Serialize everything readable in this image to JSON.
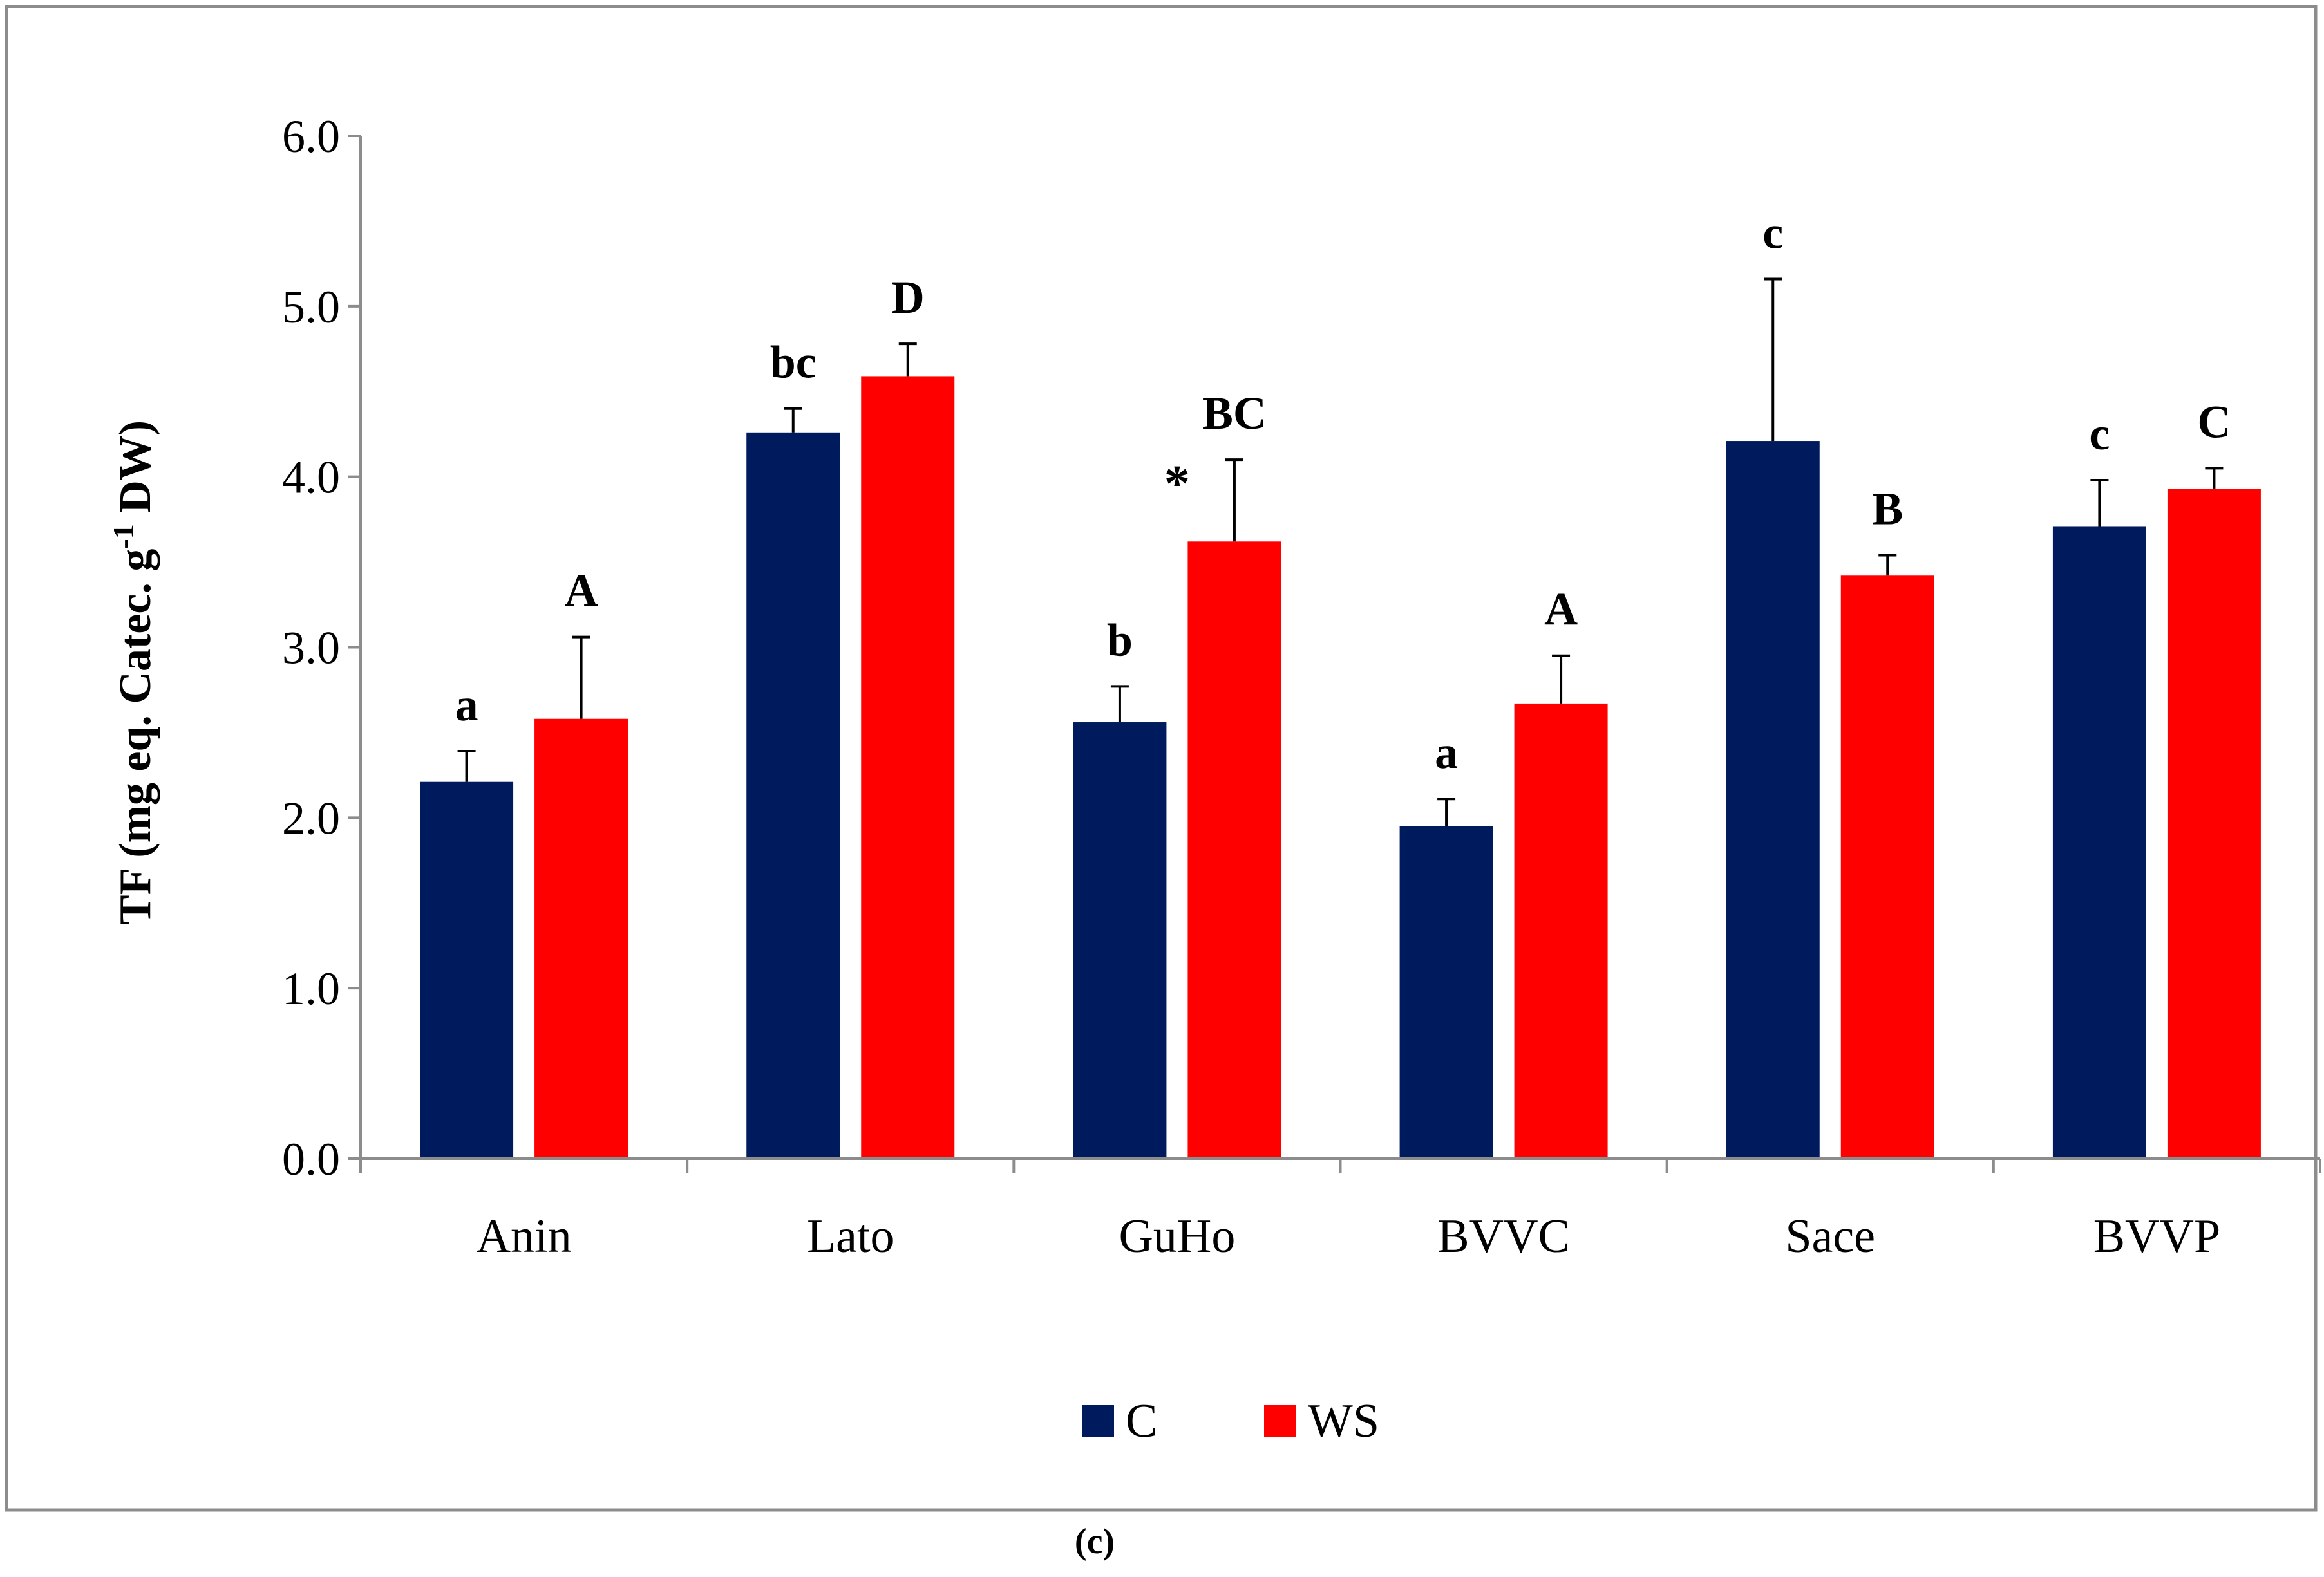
{
  "chart_data": {
    "type": "bar",
    "title": "",
    "xlabel": "",
    "ylabel_main": "TF (mg  eq. Catec. g",
    "ylabel_sup": "-1",
    "ylabel_tail": " DW)",
    "ylim": [
      0,
      6
    ],
    "yticks": [
      "0.0",
      "1.0",
      "2.0",
      "3.0",
      "4.0",
      "5.0",
      "6.0"
    ],
    "categories": [
      "Anin",
      "Lato",
      "GuHo",
      "BVVC",
      "Sace",
      "BVVP"
    ],
    "series": [
      {
        "name": "C",
        "color": "#001a5e",
        "values": [
          2.21,
          4.26,
          2.56,
          1.95,
          4.21,
          3.71
        ],
        "errors": [
          0.18,
          0.14,
          0.21,
          0.16,
          0.95,
          0.27
        ],
        "letters": [
          "a",
          "bc",
          "b",
          "a",
          "c",
          "c"
        ]
      },
      {
        "name": "WS",
        "color": "#ff0000",
        "values": [
          2.58,
          4.59,
          3.62,
          2.67,
          3.42,
          3.93
        ],
        "errors": [
          0.48,
          0.19,
          0.48,
          0.28,
          0.12,
          0.12
        ],
        "letters": [
          "A",
          "D",
          "BC",
          "A",
          "B",
          "C"
        ]
      }
    ],
    "annotations": [
      {
        "text": "*",
        "category": "GuHo",
        "value": 3.95
      }
    ],
    "legend_position": "bottom-center",
    "caption": "(c)"
  }
}
